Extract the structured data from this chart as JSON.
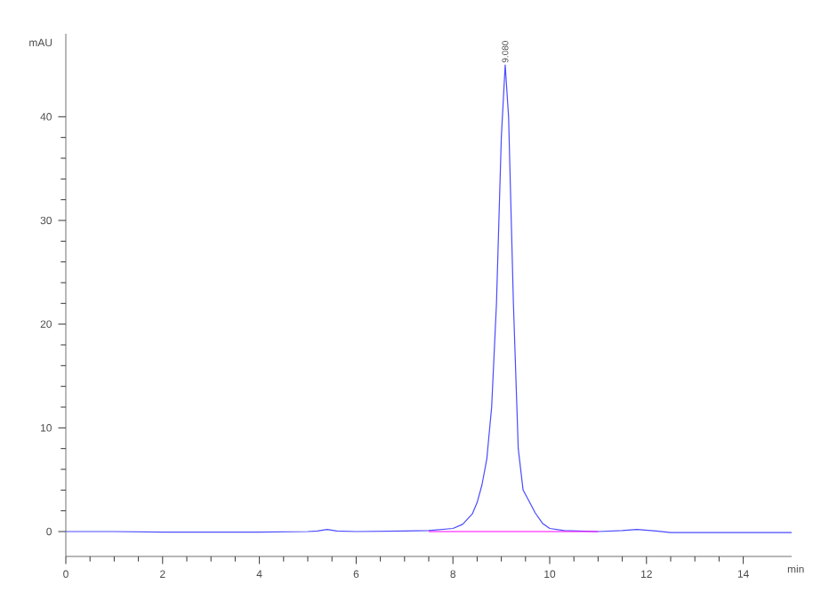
{
  "chart_data": {
    "type": "line",
    "xlabel": "min",
    "ylabel": "mAU",
    "xlim": [
      0,
      15
    ],
    "ylim": [
      -2.4,
      48
    ],
    "xticks": [
      0,
      2,
      4,
      6,
      8,
      10,
      12,
      14
    ],
    "yticks": [
      0,
      10,
      20,
      30,
      40
    ],
    "annotations": [
      {
        "text": "9.080",
        "x": 9.08,
        "y": 45
      }
    ],
    "series": [
      {
        "color": "#4a4aff",
        "x": [
          0,
          1,
          2,
          3,
          4,
          5,
          5.2,
          5.4,
          5.6,
          6,
          7,
          7.5,
          8,
          8.2,
          8.4,
          8.5,
          8.6,
          8.7,
          8.8,
          8.9,
          9.0,
          9.08,
          9.15,
          9.25,
          9.35,
          9.45,
          9.6,
          9.7,
          9.85,
          10.0,
          10.3,
          11,
          11.5,
          11.8,
          12.2,
          12.5,
          13,
          14,
          15
        ],
        "values": [
          0,
          0,
          -0.05,
          -0.05,
          -0.05,
          0,
          0.05,
          0.2,
          0.05,
          0,
          0.05,
          0.1,
          0.3,
          0.7,
          1.7,
          2.8,
          4.5,
          7,
          12,
          22,
          38,
          45,
          40,
          22,
          8,
          4,
          2.7,
          1.8,
          0.8,
          0.3,
          0.1,
          0,
          0.1,
          0.2,
          0.05,
          -0.1,
          -0.1,
          -0.1,
          -0.1
        ]
      },
      {
        "color": "#ff00ff",
        "x": [
          7.5,
          11
        ],
        "values": [
          0,
          0
        ]
      }
    ]
  }
}
